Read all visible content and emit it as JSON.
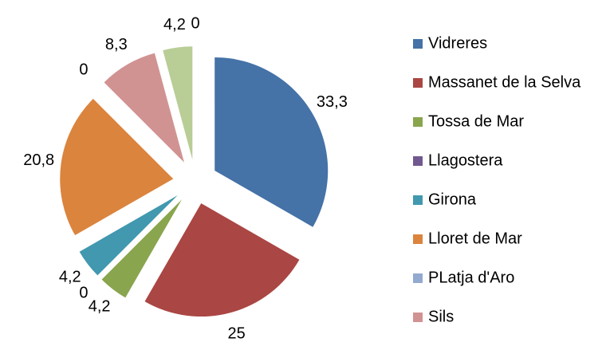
{
  "chart_data": {
    "type": "pie",
    "categories": [
      "Vidreres",
      "Massanet de la Selva",
      "Tossa de Mar",
      "Llagostera",
      "Girona",
      "Lloret de Mar",
      "PLatja d'Aro",
      "Sils",
      null,
      null
    ],
    "values": [
      33.3,
      25,
      4.2,
      0,
      4.2,
      20.8,
      0,
      8.3,
      4.2,
      0
    ],
    "value_labels": [
      "33,3",
      "25",
      "4,2",
      "0",
      "4,2",
      "20,8",
      "0",
      "8,3",
      "4,2",
      "0"
    ],
    "colors": [
      "#4572a7",
      "#aa4643",
      "#89a54e",
      "#71588f",
      "#4198af",
      "#db843d",
      "#93a9cf",
      "#d19392",
      "#b9cd96",
      "#a99bbd"
    ],
    "exploded": true,
    "legend": "right"
  }
}
